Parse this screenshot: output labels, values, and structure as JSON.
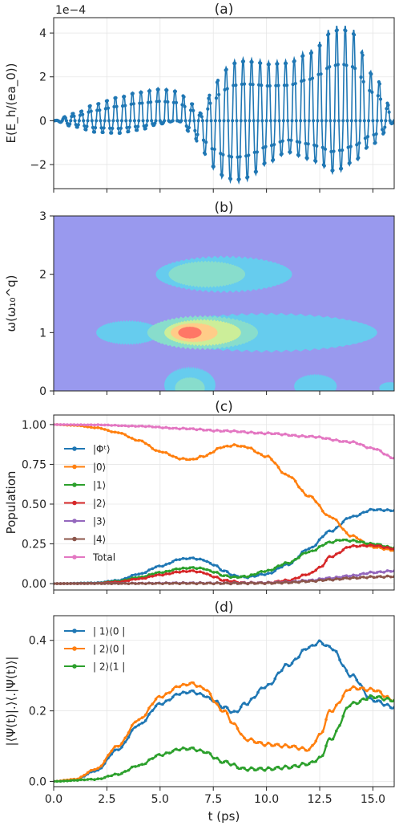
{
  "chart_data": [
    {
      "panel": "(a)",
      "type": "line",
      "title": "(a)",
      "ylabel": "E(E_h/(ea_0))",
      "y_scale_label": "1e−4",
      "xlim": [
        0,
        16
      ],
      "ylim": [
        -3.1,
        4.7
      ],
      "x_ticks": [
        0,
        2.5,
        5,
        7.5,
        10,
        12.5,
        15
      ],
      "y_ticks": [
        -2,
        0,
        2,
        4
      ],
      "y_tick_labels": [
        "−2",
        "0",
        "2",
        "4"
      ],
      "grid": true,
      "color": "#1f77b4",
      "carrier_period_ps": 0.4,
      "envelope_plus": {
        "x": [
          0,
          1,
          2,
          3,
          4,
          5,
          5.8,
          6.5,
          7,
          7.5,
          8,
          8.5,
          9,
          9.5,
          10,
          11,
          12,
          12.5,
          13,
          13.5,
          14,
          15,
          16
        ],
        "y": [
          0,
          0.35,
          0.8,
          1.1,
          1.35,
          1.5,
          1.4,
          0.8,
          0.3,
          1.6,
          2.4,
          2.75,
          2.85,
          2.8,
          2.7,
          2.75,
          3.2,
          3.6,
          4.2,
          4.4,
          4.2,
          2.2,
          0.4
        ]
      },
      "envelope_minus": {
        "x": [
          0,
          1,
          2,
          3,
          4,
          5,
          5.8,
          6.5,
          7,
          7.5,
          8,
          8.5,
          9,
          9.5,
          10,
          11,
          12,
          12.5,
          13,
          13.5,
          14,
          15,
          16
        ],
        "y": [
          0,
          -0.3,
          -0.55,
          -0.6,
          -0.45,
          -0.15,
          0,
          -0.6,
          -1.5,
          -2.2,
          -2.65,
          -2.85,
          -2.75,
          -2.45,
          -2.0,
          -1.5,
          -1.8,
          -2.0,
          -2.4,
          -2.3,
          -2.0,
          -1.1,
          -0.1
        ]
      }
    },
    {
      "panel": "(b)",
      "type": "heatmap",
      "title": "(b)",
      "ylabel": "ω(ω₁₀^q)",
      "xlim": [
        0,
        16
      ],
      "ylim": [
        0,
        3
      ],
      "x_ticks": [
        0,
        2.5,
        5,
        7.5,
        10,
        12.5,
        15
      ],
      "y_ticks": [
        0,
        1,
        2,
        3
      ],
      "background_color": "#9999ee",
      "colors": [
        "#9999ee",
        "#66ccee",
        "#88ddcc",
        "#ccee99",
        "#ffcc88",
        "#ff7766"
      ],
      "blobs": [
        {
          "t_center": 3.5,
          "t_halfwidth": 1.5,
          "w_center": 1.0,
          "w_halfwidth": 0.2,
          "level": 1
        },
        {
          "t_center": 8.0,
          "t_halfwidth": 3.2,
          "w_center": 2.0,
          "w_halfwidth": 0.3,
          "level": 1
        },
        {
          "t_center": 7.2,
          "t_halfwidth": 1.8,
          "w_center": 2.0,
          "w_halfwidth": 0.22,
          "level": 2
        },
        {
          "t_center": 10.0,
          "t_halfwidth": 5.2,
          "w_center": 1.0,
          "w_halfwidth": 0.32,
          "level": 1
        },
        {
          "t_center": 7.0,
          "t_halfwidth": 2.6,
          "w_center": 1.0,
          "w_halfwidth": 0.28,
          "level": 2
        },
        {
          "t_center": 7.0,
          "t_halfwidth": 1.8,
          "w_center": 1.0,
          "w_halfwidth": 0.22,
          "level": 3
        },
        {
          "t_center": 6.6,
          "t_halfwidth": 1.1,
          "w_center": 1.0,
          "w_halfwidth": 0.16,
          "level": 4
        },
        {
          "t_center": 6.4,
          "t_halfwidth": 0.55,
          "w_center": 1.0,
          "w_halfwidth": 0.1,
          "level": 5
        },
        {
          "t_center": 6.4,
          "t_halfwidth": 1.2,
          "w_center": 0.1,
          "w_halfwidth": 0.3,
          "level": 1
        },
        {
          "t_center": 6.4,
          "t_halfwidth": 0.7,
          "w_center": 0.05,
          "w_halfwidth": 0.18,
          "level": 2
        },
        {
          "t_center": 12.3,
          "t_halfwidth": 1.0,
          "w_center": 0.08,
          "w_halfwidth": 0.2,
          "level": 1
        },
        {
          "t_center": 15.8,
          "t_halfwidth": 0.5,
          "w_center": 0.05,
          "w_halfwidth": 0.1,
          "level": 1
        }
      ]
    },
    {
      "panel": "(c)",
      "type": "line",
      "title": "(c)",
      "ylabel": "Population",
      "xlim": [
        0,
        16
      ],
      "ylim": [
        -0.04,
        1.06
      ],
      "x_ticks": [
        0,
        2.5,
        5,
        7.5,
        10,
        12.5,
        15
      ],
      "y_ticks": [
        0,
        0.25,
        0.5,
        0.75,
        1.0
      ],
      "y_tick_labels": [
        "0.00",
        "0.25",
        "0.50",
        "0.75",
        "1.00"
      ],
      "grid": true,
      "legend_position": "left",
      "series": [
        {
          "name": "|Φᵗ⟩",
          "color": "#1f77b4",
          "x": [
            0,
            2,
            3,
            4,
            5,
            6,
            6.5,
            7,
            7.5,
            8,
            8.5,
            9,
            10,
            11,
            12,
            13,
            14,
            15,
            16
          ],
          "y": [
            0,
            0.005,
            0.02,
            0.06,
            0.11,
            0.155,
            0.16,
            0.15,
            0.12,
            0.08,
            0.05,
            0.04,
            0.06,
            0.12,
            0.22,
            0.33,
            0.42,
            0.465,
            0.46
          ]
        },
        {
          "name": "|0⟩",
          "color": "#ff7f0e",
          "x": [
            0,
            1,
            2,
            3,
            4,
            5,
            6,
            6.5,
            7,
            8,
            8.5,
            9,
            10,
            11,
            12,
            13,
            14,
            15,
            16
          ],
          "y": [
            1.0,
            0.995,
            0.98,
            0.95,
            0.9,
            0.83,
            0.785,
            0.78,
            0.8,
            0.86,
            0.87,
            0.86,
            0.8,
            0.68,
            0.55,
            0.42,
            0.3,
            0.23,
            0.21
          ]
        },
        {
          "name": "|1⟩",
          "color": "#2ca02c",
          "x": [
            0,
            2,
            3,
            4,
            5,
            6,
            6.5,
            7,
            7.5,
            8,
            8.5,
            9,
            10,
            11,
            12,
            13,
            13.5,
            14,
            15,
            16
          ],
          "y": [
            0,
            0.003,
            0.015,
            0.04,
            0.07,
            0.095,
            0.1,
            0.095,
            0.075,
            0.05,
            0.04,
            0.045,
            0.08,
            0.13,
            0.2,
            0.26,
            0.275,
            0.27,
            0.25,
            0.225
          ]
        },
        {
          "name": "|2⟩",
          "color": "#d62728",
          "x": [
            0,
            2,
            3,
            4,
            5,
            6,
            6.5,
            7,
            7.5,
            8,
            9,
            10,
            11,
            12,
            12.5,
            13,
            14,
            15,
            16
          ],
          "y": [
            0,
            0.002,
            0.01,
            0.03,
            0.055,
            0.075,
            0.08,
            0.07,
            0.045,
            0.02,
            0.005,
            0.005,
            0.02,
            0.06,
            0.1,
            0.17,
            0.235,
            0.24,
            0.22
          ]
        },
        {
          "name": "|3⟩",
          "color": "#9467bd",
          "x": [
            0,
            4,
            6,
            8,
            10,
            11,
            12,
            13,
            14,
            15,
            16
          ],
          "y": [
            0,
            0.002,
            0.004,
            0.003,
            0.005,
            0.01,
            0.02,
            0.035,
            0.05,
            0.07,
            0.08
          ]
        },
        {
          "name": "|4⟩",
          "color": "#8c564b",
          "x": [
            0,
            4,
            6,
            8,
            10,
            11,
            12,
            13,
            14,
            15,
            16
          ],
          "y": [
            0,
            0.001,
            0.002,
            0.002,
            0.003,
            0.007,
            0.015,
            0.025,
            0.035,
            0.042,
            0.045
          ]
        },
        {
          "name": "Total",
          "color": "#e377c2",
          "x": [
            0,
            2,
            4,
            6,
            8,
            10,
            12,
            14,
            15,
            16
          ],
          "y": [
            1.0,
            0.998,
            0.99,
            0.975,
            0.96,
            0.945,
            0.925,
            0.89,
            0.85,
            0.79
          ]
        }
      ]
    },
    {
      "panel": "(d)",
      "type": "line",
      "title": "(d)",
      "ylabel": "|⟨Ψ(t)|.⟩⟨.|Ψ(t)⟩|",
      "xlabel": "t (ps)",
      "xlim": [
        0,
        16
      ],
      "ylim": [
        -0.015,
        0.47
      ],
      "x_ticks": [
        0,
        2.5,
        5,
        7.5,
        10,
        12.5,
        15
      ],
      "x_tick_labels": [
        "0.0",
        "2.5",
        "5.0",
        "7.5",
        "10.0",
        "12.5",
        "15.0"
      ],
      "y_ticks": [
        0,
        0.2,
        0.4
      ],
      "y_tick_labels": [
        "0.0",
        "0.2",
        "0.4"
      ],
      "grid": true,
      "legend_position": "top-left",
      "series": [
        {
          "name": "| 1⟩⟨0 |",
          "color": "#1f77b4",
          "x": [
            0,
            1,
            2,
            3,
            4,
            5,
            6,
            6.5,
            7,
            7.5,
            8,
            8.5,
            9,
            10,
            11,
            12,
            12.5,
            13,
            14,
            15,
            16
          ],
          "y": [
            0,
            0.005,
            0.03,
            0.09,
            0.16,
            0.22,
            0.25,
            0.255,
            0.245,
            0.23,
            0.21,
            0.195,
            0.22,
            0.27,
            0.33,
            0.38,
            0.395,
            0.38,
            0.3,
            0.23,
            0.21
          ]
        },
        {
          "name": "| 2⟩⟨0 |",
          "color": "#ff7f0e",
          "x": [
            0,
            1,
            2,
            3,
            4,
            5,
            6,
            6.5,
            7,
            8,
            8.5,
            9,
            10,
            11,
            12,
            12.5,
            13,
            14,
            15,
            16
          ],
          "y": [
            0,
            0.006,
            0.035,
            0.1,
            0.175,
            0.24,
            0.272,
            0.278,
            0.265,
            0.2,
            0.16,
            0.12,
            0.105,
            0.1,
            0.09,
            0.13,
            0.2,
            0.265,
            0.26,
            0.23
          ]
        },
        {
          "name": "| 2⟩⟨1 |",
          "color": "#2ca02c",
          "x": [
            0,
            2,
            3,
            4,
            5,
            6,
            6.5,
            7,
            8,
            9,
            10,
            11,
            12,
            12.5,
            13,
            14,
            15,
            16
          ],
          "y": [
            0,
            0.006,
            0.02,
            0.045,
            0.075,
            0.092,
            0.093,
            0.085,
            0.055,
            0.035,
            0.035,
            0.04,
            0.05,
            0.065,
            0.12,
            0.22,
            0.24,
            0.23
          ]
        }
      ]
    }
  ]
}
